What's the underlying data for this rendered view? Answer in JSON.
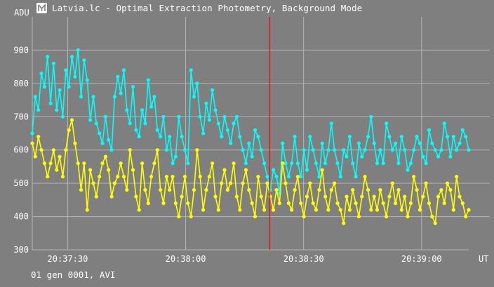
{
  "window": {
    "title": "Latvia.lc - Optimal Extraction Photometry, Background Mode",
    "footer": "01 gen 0001, AVI"
  },
  "colors": {
    "background": "#7f7f7f",
    "grid": "#b4b4b4",
    "series_cyan": "#00ffff",
    "series_yellow": "#ffff00",
    "cursor": "#ff0000"
  },
  "chart_data": {
    "type": "line",
    "ylabel": "ADU",
    "xlabel": "UT",
    "ylim": [
      300,
      1000
    ],
    "yticks": [
      300,
      400,
      500,
      600,
      700,
      800,
      900
    ],
    "xlim_seconds": [
      2241,
      2352
    ],
    "xticks": [
      {
        "t": 2250,
        "label": "20:37:30"
      },
      {
        "t": 2280,
        "label": "20:38:00"
      },
      {
        "t": 2310,
        "label": "20:38:30"
      },
      {
        "t": 2340,
        "label": "20:39:00"
      }
    ],
    "cursor_t": 2301.4,
    "grid": true,
    "series": [
      {
        "color": "cyan",
        "time_start": "20:37:21",
        "time_end": "20:39:12",
        "values": [
          650,
          760,
          720,
          830,
          790,
          880,
          740,
          860,
          720,
          780,
          700,
          840,
          790,
          880,
          820,
          900,
          760,
          870,
          810,
          690,
          760,
          680,
          650,
          620,
          700,
          630,
          600,
          760,
          820,
          770,
          840,
          720,
          680,
          790,
          660,
          640,
          720,
          680,
          810,
          730,
          760,
          660,
          640,
          700,
          600,
          640,
          560,
          580,
          700,
          640,
          600,
          560,
          840,
          760,
          800,
          700,
          650,
          740,
          690,
          780,
          720,
          680,
          640,
          700,
          660,
          620,
          680,
          700,
          640,
          600,
          560,
          620,
          580,
          660,
          640,
          600,
          560,
          520,
          480,
          540,
          520,
          470,
          620,
          560,
          520,
          560,
          640,
          560,
          520,
          600,
          540,
          640,
          600,
          560,
          520,
          620,
          560,
          600,
          680,
          600,
          560,
          520,
          600,
          580,
          640,
          560,
          520,
          620,
          580,
          600,
          640,
          700,
          620,
          560,
          600,
          560,
          680,
          640,
          600,
          620,
          560,
          640,
          600,
          540,
          560,
          600,
          640,
          620,
          580,
          560,
          660,
          620,
          600,
          580,
          600,
          680,
          640,
          580,
          640,
          600,
          620,
          660,
          640,
          600
        ]
      },
      {
        "color": "yellow",
        "time_start": "20:37:21",
        "time_end": "20:39:12",
        "values": [
          620,
          580,
          640,
          600,
          560,
          520,
          560,
          600,
          540,
          580,
          520,
          600,
          660,
          690,
          620,
          560,
          480,
          560,
          420,
          540,
          500,
          460,
          520,
          560,
          580,
          540,
          460,
          500,
          520,
          560,
          520,
          480,
          600,
          540,
          460,
          420,
          560,
          480,
          440,
          520,
          560,
          600,
          480,
          440,
          520,
          480,
          520,
          440,
          400,
          460,
          520,
          440,
          400,
          480,
          600,
          520,
          420,
          480,
          520,
          560,
          460,
          420,
          500,
          540,
          480,
          500,
          560,
          460,
          420,
          500,
          540,
          480,
          440,
          400,
          520,
          460,
          420,
          500,
          460,
          420,
          480,
          440,
          560,
          500,
          440,
          420,
          480,
          520,
          440,
          400,
          460,
          500,
          440,
          420,
          480,
          540,
          460,
          420,
          480,
          500,
          440,
          420,
          380,
          460,
          420,
          480,
          440,
          400,
          460,
          520,
          480,
          420,
          460,
          420,
          480,
          440,
          400,
          460,
          500,
          440,
          480,
          420,
          460,
          400,
          440,
          520,
          480,
          420,
          460,
          500,
          440,
          400,
          380,
          460,
          480,
          440,
          500,
          480,
          420,
          520,
          460,
          440,
          400,
          420
        ]
      }
    ]
  }
}
